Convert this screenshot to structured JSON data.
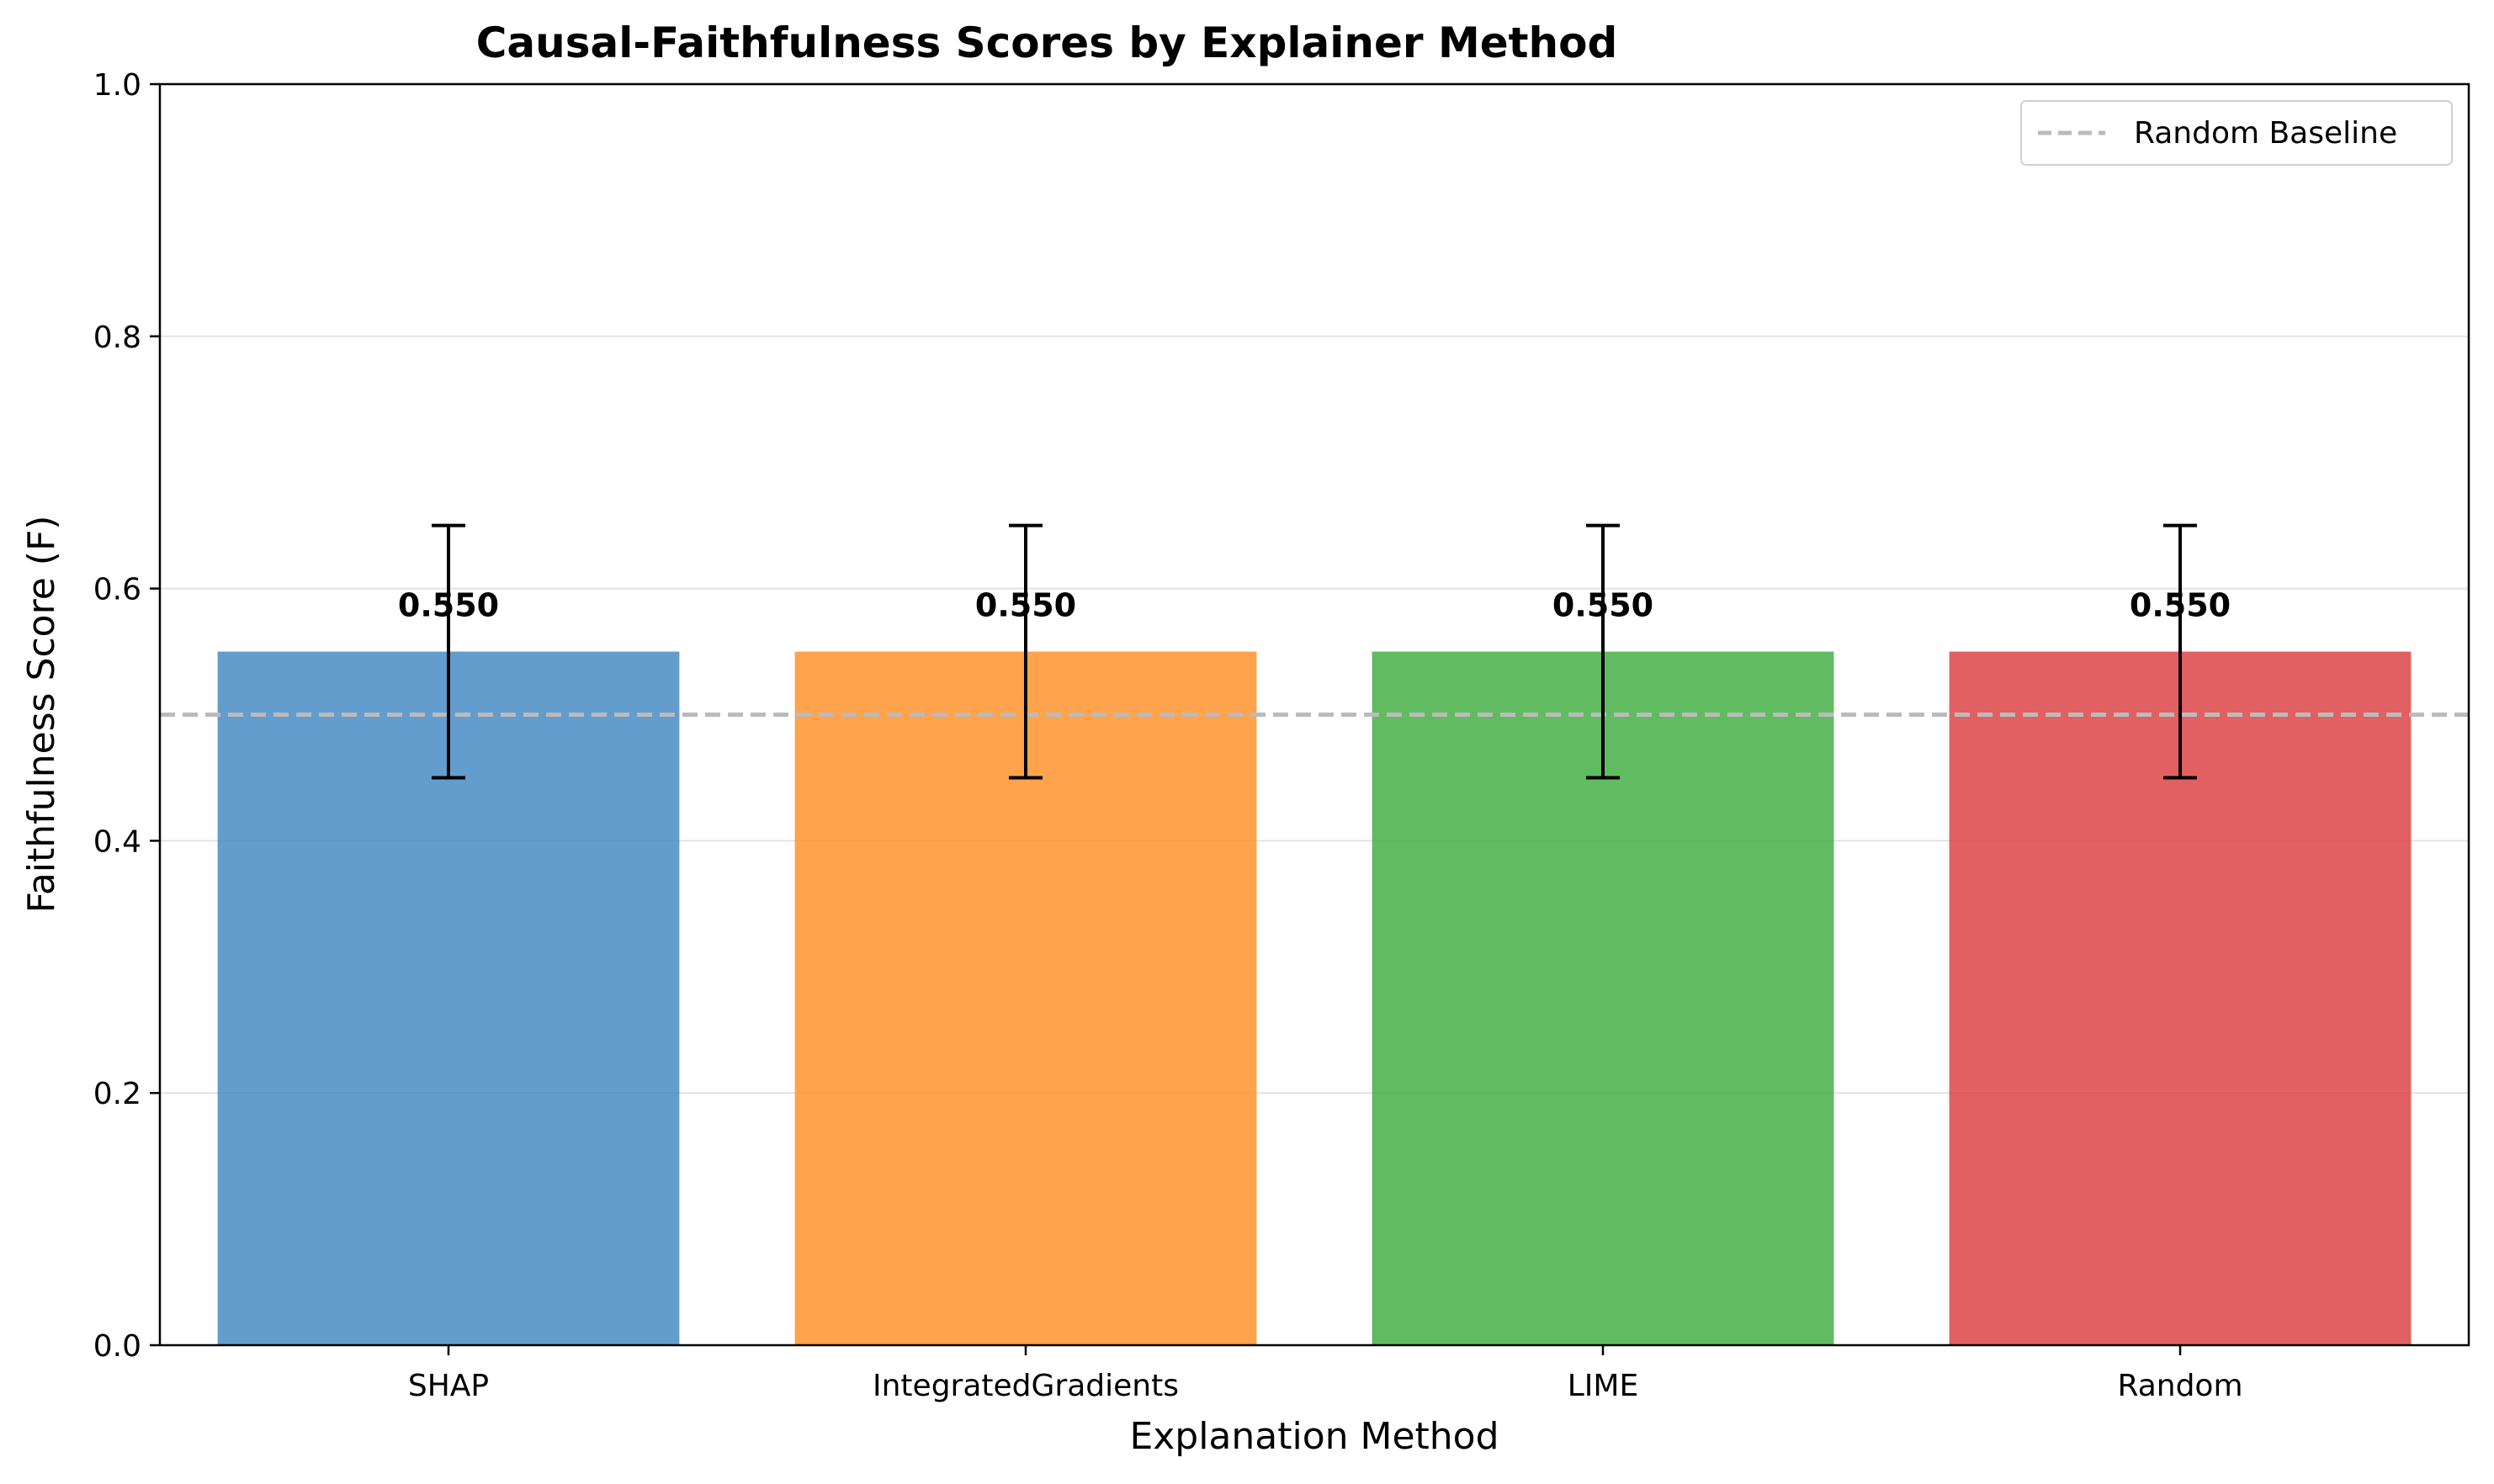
{
  "chart_data": {
    "type": "bar",
    "title": "Causal-Faithfulness Scores by Explainer Method",
    "xlabel": "Explanation Method",
    "ylabel": "Faithfulness Score (F)",
    "categories": [
      "SHAP",
      "IntegratedGradients",
      "LIME",
      "Random"
    ],
    "values": [
      0.55,
      0.55,
      0.55,
      0.55
    ],
    "errors": [
      0.1,
      0.1,
      0.1,
      0.1
    ],
    "value_labels": [
      "0.550",
      "0.550",
      "0.550",
      "0.550"
    ],
    "colors": [
      "#3c85c0",
      "#ff8c1f",
      "#3aaa3a",
      "#d93a3b"
    ],
    "ylim": [
      0,
      1.0
    ],
    "yticks": [
      0.0,
      0.2,
      0.4,
      0.6,
      0.8,
      1.0
    ],
    "ytick_labels": [
      "0.0",
      "0.2",
      "0.4",
      "0.6",
      "0.8",
      "1.0"
    ],
    "grid": "y",
    "baseline": {
      "label": "Random Baseline",
      "value": 0.5,
      "color": "#bbbbbb",
      "style": "dashed"
    },
    "legend": {
      "position": "top-right",
      "entries": [
        "Random Baseline"
      ]
    }
  }
}
